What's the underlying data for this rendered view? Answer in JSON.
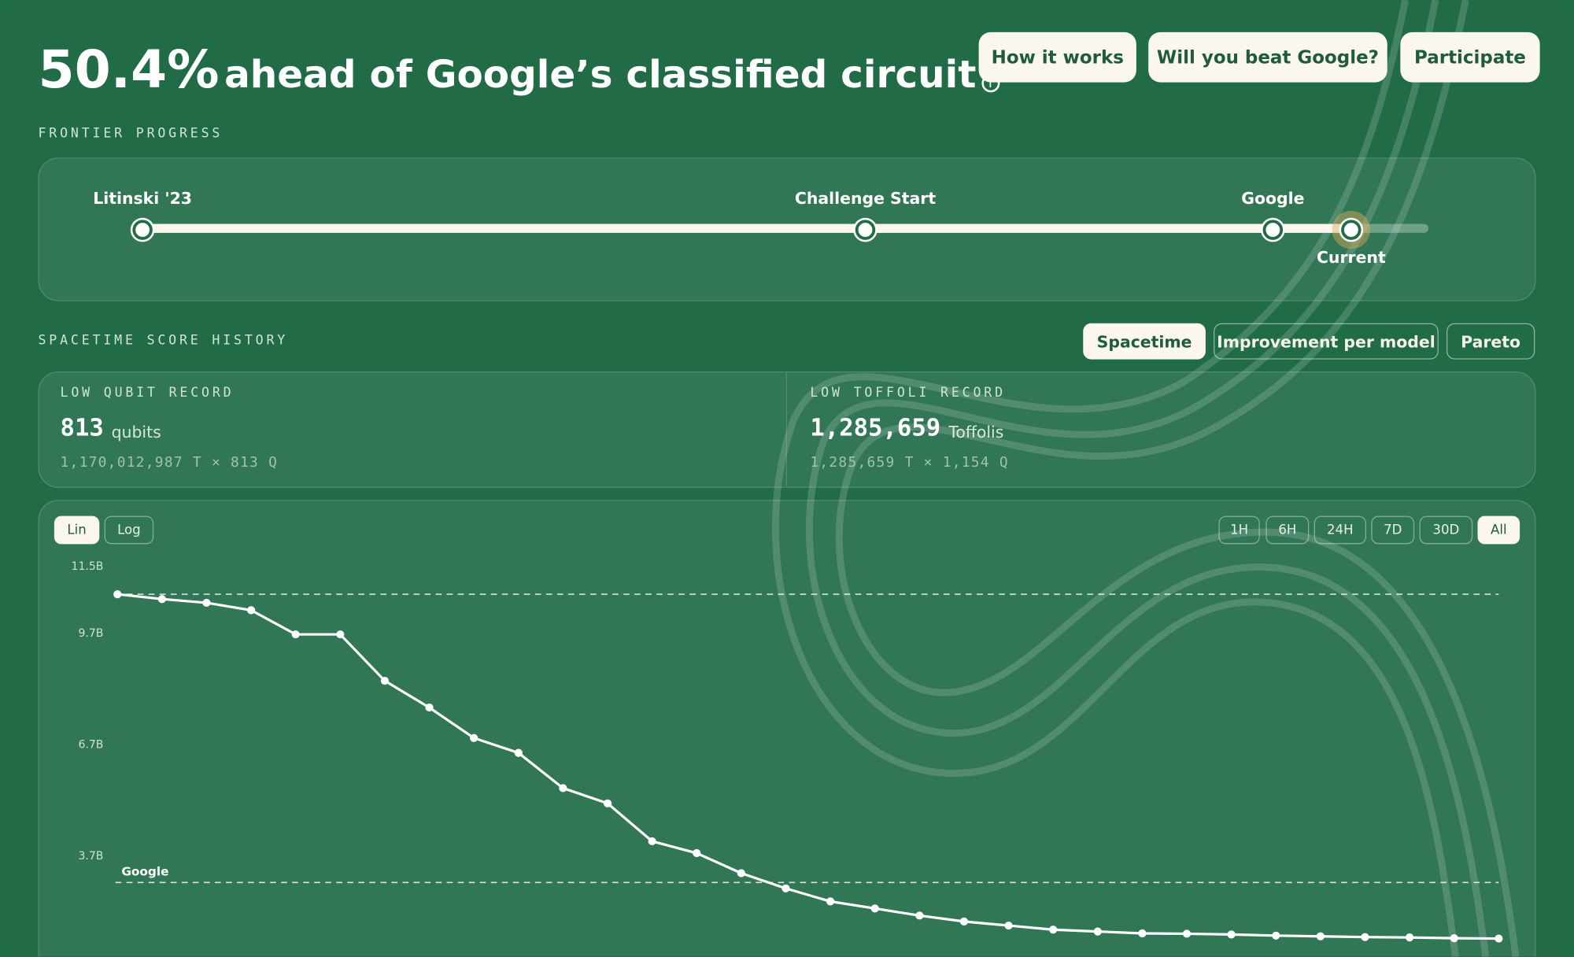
{
  "header": {
    "title_value": "50.4%",
    "title_text": "ahead of Google’s classified circuit",
    "buttons": [
      "How it works",
      "Will you beat Google?",
      "Participate"
    ]
  },
  "frontier": {
    "label": "FRONTIER PROGRESS",
    "milestones": [
      "Litinski '23",
      "Challenge Start",
      "Google",
      "Current"
    ]
  },
  "history": {
    "label": "SPACETIME SCORE HISTORY",
    "tabs": [
      "Spacetime",
      "Improvement per model",
      "Pareto"
    ]
  },
  "records": [
    {
      "label": "LOW QUBIT RECORD",
      "value": "813",
      "unit": "qubits",
      "detail": "1,170,012,987 T × 813 Q"
    },
    {
      "label": "LOW TOFFOLI RECORD",
      "value": "1,285,659",
      "unit": "Toffolis",
      "detail": "1,285,659 T × 1,154 Q"
    }
  ],
  "controls": {
    "scales": [
      "Lin",
      "Log"
    ],
    "ranges": [
      "1H",
      "6H",
      "24H",
      "7D",
      "30D",
      "All"
    ]
  },
  "chart_data": {
    "type": "line",
    "color": "#ffffff",
    "categories": [
      null,
      null,
      null,
      null,
      null,
      null,
      null,
      null,
      null,
      null,
      null,
      null,
      null,
      null,
      null,
      null,
      null,
      null,
      null,
      null,
      null,
      null,
      null,
      null,
      null,
      null,
      null,
      null,
      null,
      null,
      null,
      null
    ],
    "values": [
      10730000000,
      10600000000,
      10500000000,
      10300000000,
      9650000000,
      9650000000,
      8400000000,
      7680000000,
      6860000000,
      6460000000,
      5510000000,
      5100000000,
      4080000000,
      3760000000,
      3220000000,
      2810000000,
      2460000000,
      2270000000,
      2080000000,
      1920000000,
      1810000000,
      1700000000,
      1650000000,
      1600000000,
      1590000000,
      1570000000,
      1540000000,
      1520000000,
      1500000000,
      1490000000,
      1470000000,
      1460000000
    ],
    "ylim": [
      0,
      11600000000
    ],
    "yticks": [
      {
        "value": 3700000000,
        "label": "3.7B"
      },
      {
        "value": 6700000000,
        "label": "6.7B"
      },
      {
        "value": 9700000000,
        "label": "9.7B"
      },
      {
        "value": 11500000000,
        "label": "11.5B"
      }
    ],
    "reference_lines": [
      {
        "value": 10730000000
      },
      {
        "value": 2970000000,
        "label": "Google"
      }
    ]
  }
}
